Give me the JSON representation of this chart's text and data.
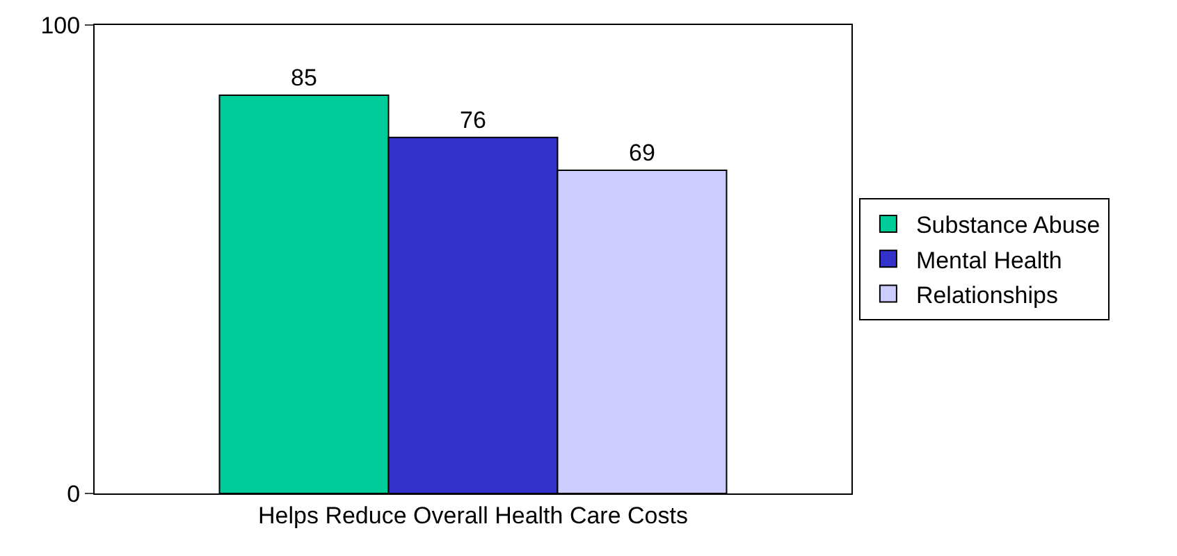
{
  "chart_data": {
    "type": "bar",
    "categories": [
      "Helps Reduce Overall Health Care Costs"
    ],
    "series": [
      {
        "name": "Substance Abuse",
        "color": "#00cc99",
        "values": [
          85
        ]
      },
      {
        "name": "Mental Health",
        "color": "#3333cc",
        "values": [
          76
        ]
      },
      {
        "name": "Relationships",
        "color": "#ccccff",
        "values": [
          69
        ]
      }
    ],
    "ylim": [
      0,
      100
    ],
    "yticks": [
      0,
      100
    ],
    "grid": false,
    "legend": "right",
    "data_labels": true
  }
}
